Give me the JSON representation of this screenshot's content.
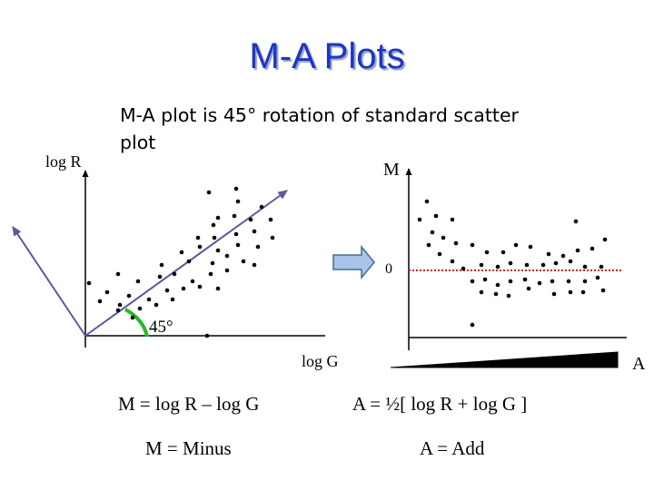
{
  "slide": {
    "title": "M-A Plots",
    "subtitle": "M-A plot is 45° rotation of standard scatter plot"
  },
  "left_plot": {
    "y_label": "log R",
    "x_label": "log G",
    "angle_label": "45°"
  },
  "right_plot": {
    "y_label": "M",
    "zero_label": "0",
    "x_label": "A"
  },
  "formulas": {
    "m": "M = log R – log G",
    "a": "A = ½[ log R + log G ]"
  },
  "meanings": {
    "m": "M = Minus",
    "a": "A = Add"
  },
  "colors": {
    "title": "#1c35c8",
    "zero_line": "#cc2222",
    "arc": "#22bb22",
    "arrow_fill": "#a9c4e8",
    "arrow_stroke": "#4a6a96",
    "rotated_axes": "#5a5a9a"
  }
}
